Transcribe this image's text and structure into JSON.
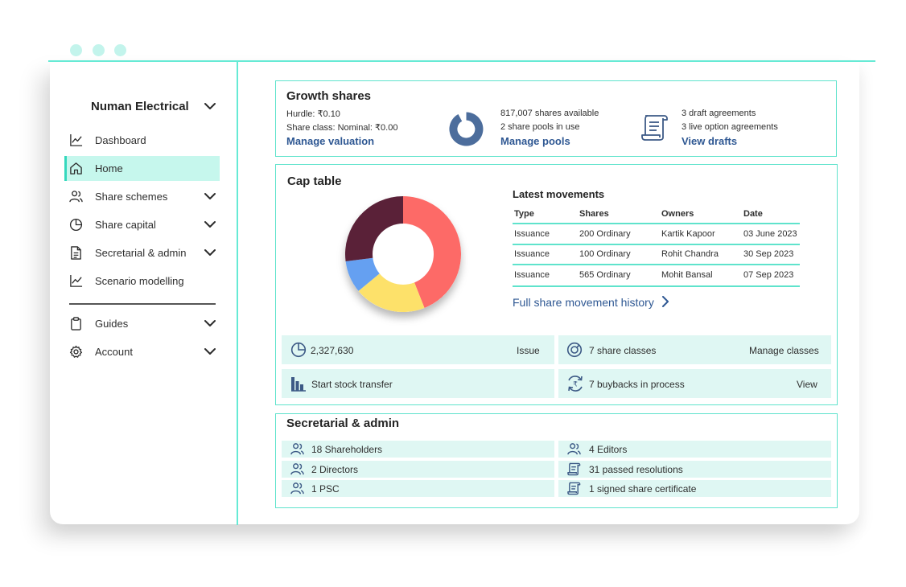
{
  "sidebar": {
    "company": "Numan Electrical",
    "items": [
      {
        "label": "Dashboard",
        "icon": "line-chart-icon"
      },
      {
        "label": "Home",
        "icon": "home-icon",
        "active": true
      },
      {
        "label": "Share schemes",
        "icon": "users-icon"
      },
      {
        "label": "Share capital",
        "icon": "pie-chart-icon"
      },
      {
        "label": "Secretarial & admin",
        "icon": "document-icon"
      },
      {
        "label": "Scenario modelling",
        "icon": "line-chart-icon"
      },
      {
        "label": "Guides",
        "icon": "clipboard-icon"
      },
      {
        "label": "Account",
        "icon": "gear-icon"
      }
    ]
  },
  "growth": {
    "title": "Growth shares",
    "hurdle": "Hurdle: ₹0.10",
    "share_class": "Share class: Nominal: ₹0.00",
    "manage_valuation": "Manage valuation",
    "shares_available": "817,007 shares available",
    "pools_in_use": "2 share pools in use",
    "manage_pools": "Manage pools",
    "draft_agreements": "3 draft agreements",
    "live_agreements": "3 live option agreements",
    "view_drafts": "View drafts"
  },
  "cap": {
    "title": "Cap table",
    "movements_title": "Latest movements",
    "columns": [
      "Type",
      "Shares",
      "Owners",
      "Date"
    ],
    "rows": [
      [
        "Issuance",
        "200 Ordinary",
        "Kartik Kapoor",
        "03 June 2023"
      ],
      [
        "Issuance",
        "100 Ordinary",
        "Rohit Chandra",
        "30 Sep 2023"
      ],
      [
        "Issuance",
        "565 Ordinary",
        "Mohit Bansal",
        "07 Sep 2023"
      ]
    ],
    "history_link": "Full share movement history",
    "tiles": {
      "issued": "2,327,630",
      "issue": "Issue",
      "share_classes": "7 share classes",
      "manage_classes": "Manage classes",
      "stock_transfer": "Start stock transfer",
      "buybacks": "7 buybacks in process",
      "view": "View"
    }
  },
  "chart_data": {
    "type": "pie",
    "values": [
      44,
      20,
      9,
      27
    ],
    "colors": [
      "#fd6a67",
      "#fde16a",
      "#65a0f1",
      "#5a2138"
    ]
  },
  "sec": {
    "title": "Secretarial & admin",
    "items": [
      "18 Shareholders",
      "4 Editors",
      "2 Directors",
      "31 passed resolutions",
      "1 PSC",
      "1 signed share certificate"
    ]
  },
  "colors": {
    "accent": "#5fe3cc",
    "link": "#2f5893",
    "tile_bg": "#dff7f3",
    "icon": "#3d5a86"
  }
}
